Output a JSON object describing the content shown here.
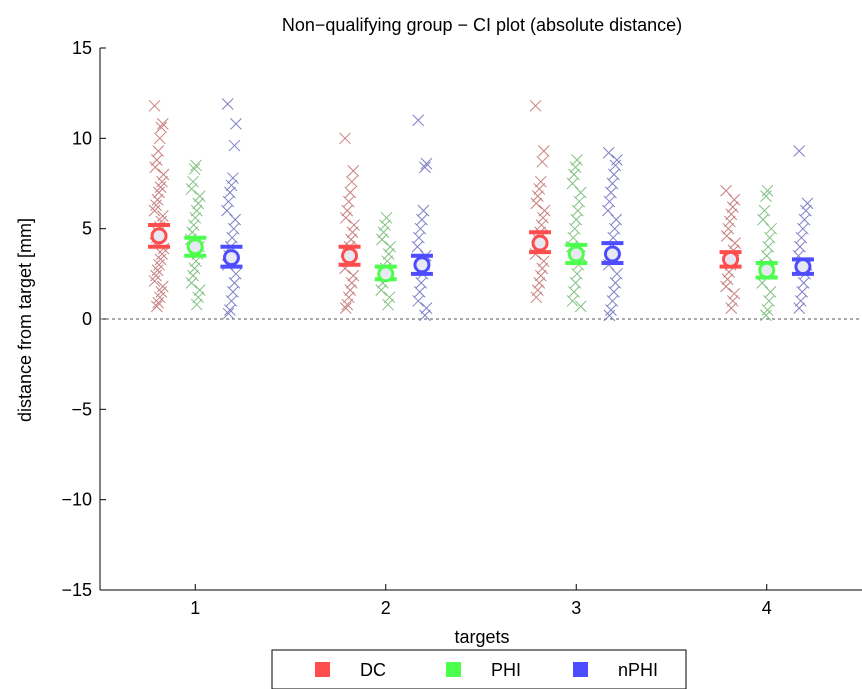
{
  "chart_data": {
    "type": "scatter",
    "title": "Non−qualifying group − CI plot (absolute distance)",
    "xlabel": "targets",
    "ylabel": "distance from target [mm]",
    "ylim": [
      -15,
      15
    ],
    "xlim": [
      0.5,
      4.5
    ],
    "yticks": [
      "−15",
      "−10",
      "−5",
      "0",
      "5",
      "10",
      "15"
    ],
    "ytick_values": [
      -15,
      -10,
      -5,
      0,
      5,
      10,
      15
    ],
    "categories": [
      "1",
      "2",
      "3",
      "4"
    ],
    "reference_line": 0,
    "legend_position": "bottom-center",
    "series": [
      {
        "name": "DC",
        "color": "#ff4d4d",
        "scatter_color": "#c98080",
        "means": [
          4.6,
          3.5,
          4.2,
          3.3
        ],
        "ci": [
          [
            4.0,
            5.2
          ],
          [
            3.0,
            4.0
          ],
          [
            3.7,
            4.8
          ],
          [
            2.9,
            3.7
          ]
        ],
        "points": [
          [
            11.8,
            10.8,
            10.6,
            10.0,
            9.3,
            8.8,
            8.4,
            8.0,
            7.6,
            7.3,
            7.0,
            6.6,
            6.3,
            6.0,
            5.7,
            5.4,
            5.1,
            4.8,
            4.5,
            4.2,
            3.9,
            3.6,
            3.3,
            3.0,
            2.7,
            2.4,
            2.1,
            1.8,
            1.5,
            1.2,
            0.9,
            0.7
          ],
          [
            10.0,
            8.2,
            7.6,
            7.0,
            6.5,
            6.0,
            5.6,
            5.2,
            4.8,
            4.4,
            4.0,
            3.6,
            3.2,
            2.8,
            2.4,
            2.0,
            1.6,
            1.2,
            0.8,
            0.6
          ],
          [
            11.8,
            9.3,
            8.7,
            7.6,
            7.2,
            6.8,
            6.4,
            6.0,
            5.6,
            5.2,
            4.8,
            4.4,
            4.0,
            3.6,
            3.2,
            2.8,
            2.4,
            2.0,
            1.6,
            1.2
          ],
          [
            7.1,
            6.6,
            6.2,
            5.8,
            5.4,
            5.0,
            4.6,
            4.2,
            3.8,
            3.4,
            3.0,
            2.6,
            2.2,
            1.8,
            1.4,
            1.0,
            0.6
          ]
        ]
      },
      {
        "name": "PHI",
        "color": "#4dff4d",
        "scatter_color": "#80c080",
        "means": [
          4.0,
          2.5,
          3.6,
          2.7
        ],
        "ci": [
          [
            3.5,
            4.5
          ],
          [
            2.2,
            2.9
          ],
          [
            3.1,
            4.1
          ],
          [
            2.3,
            3.1
          ]
        ],
        "points": [
          [
            8.5,
            8.3,
            7.6,
            7.2,
            6.8,
            6.4,
            6.0,
            5.6,
            5.2,
            4.8,
            4.4,
            4.0,
            3.6,
            3.2,
            2.8,
            2.4,
            2.0,
            1.6,
            1.2,
            0.8
          ],
          [
            5.6,
            5.2,
            4.8,
            4.4,
            4.0,
            3.6,
            3.2,
            2.8,
            2.4,
            2.0,
            1.6,
            1.2,
            0.8
          ],
          [
            8.8,
            8.4,
            8.0,
            7.5,
            7.0,
            6.5,
            6.0,
            5.5,
            5.0,
            4.5,
            4.0,
            3.5,
            3.0,
            2.5,
            2.0,
            1.5,
            1.0,
            0.7
          ],
          [
            7.1,
            6.8,
            6.0,
            5.5,
            5.0,
            4.5,
            4.0,
            3.5,
            3.0,
            2.5,
            2.0,
            1.5,
            1.0,
            0.5,
            0.2
          ]
        ]
      },
      {
        "name": "nPHI",
        "color": "#4d4dff",
        "scatter_color": "#8080c8",
        "means": [
          3.4,
          3.0,
          3.6,
          2.9
        ],
        "ci": [
          [
            2.9,
            4.0
          ],
          [
            2.5,
            3.5
          ],
          [
            3.1,
            4.2
          ],
          [
            2.5,
            3.3
          ]
        ],
        "points": [
          [
            11.9,
            10.8,
            9.6,
            7.8,
            7.4,
            7.0,
            6.5,
            6.0,
            5.5,
            5.0,
            4.5,
            4.0,
            3.5,
            3.0,
            2.5,
            2.0,
            1.5,
            1.0,
            0.5,
            0.3
          ],
          [
            11.0,
            8.6,
            8.4,
            6.0,
            5.5,
            5.0,
            4.5,
            4.0,
            3.5,
            3.0,
            2.5,
            2.0,
            1.5,
            1.0,
            0.6,
            0.2
          ],
          [
            9.2,
            8.8,
            8.5,
            8.0,
            7.5,
            7.0,
            6.5,
            6.0,
            5.5,
            5.0,
            4.5,
            4.0,
            3.5,
            3.0,
            2.5,
            2.0,
            1.5,
            1.0,
            0.5,
            0.2
          ],
          [
            9.3,
            6.4,
            6.0,
            5.5,
            5.0,
            4.5,
            4.0,
            3.5,
            3.0,
            2.5,
            2.0,
            1.5,
            1.0,
            0.6
          ]
        ]
      }
    ]
  }
}
